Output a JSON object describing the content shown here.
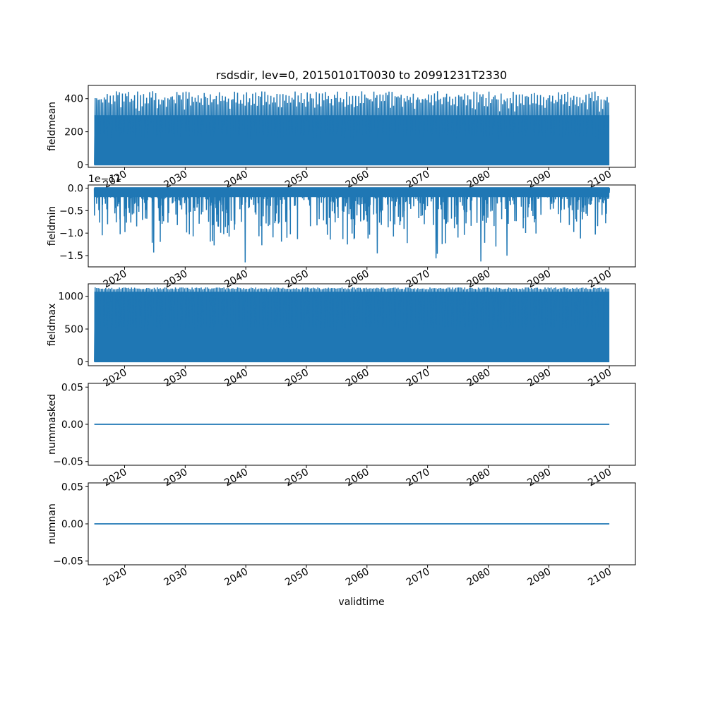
{
  "figure": {
    "title": "rsdsdir, lev=0, 20150101T0030 to 20991231T2330",
    "xlabel": "validtime"
  },
  "colors": {
    "series": "#1f77b4",
    "axes": "#000000",
    "background": "#ffffff"
  },
  "chart_data": [
    {
      "type": "line",
      "name": "fieldmean",
      "ylabel": "fieldmean",
      "x_range": [
        "2015-01-01",
        "2099-12-31"
      ],
      "xlim": [
        2014.0,
        2104.3
      ],
      "xticks": [
        2020,
        2030,
        2040,
        2050,
        2060,
        2070,
        2080,
        2090,
        2100
      ],
      "xtick_labels": [
        "2020",
        "2030",
        "2040",
        "2050",
        "2060",
        "2070",
        "2080",
        "2090",
        "2100"
      ],
      "ylim": [
        -15,
        480
      ],
      "yticks": [
        0,
        200,
        400
      ],
      "ytick_labels": [
        "0",
        "200",
        "400"
      ],
      "offset_text": "",
      "base_value": 0,
      "envelope": "dense diurnal oscillation between 0 and a seasonal daily peak",
      "seasonal_peak_range": [
        300,
        460
      ]
    },
    {
      "type": "line",
      "name": "fieldmin",
      "ylabel": "fieldmin",
      "x_range": [
        "2015-01-01",
        "2099-12-31"
      ],
      "xlim": [
        2014.0,
        2104.3
      ],
      "xticks": [
        2020,
        2030,
        2040,
        2050,
        2060,
        2070,
        2080,
        2090,
        2100
      ],
      "xtick_labels": [
        "2020",
        "2030",
        "2040",
        "2050",
        "2060",
        "2070",
        "2080",
        "2090",
        "2100"
      ],
      "ylim": [
        -1.75,
        0.07
      ],
      "yticks": [
        0.0,
        -0.5,
        -1.0,
        -1.5
      ],
      "ytick_labels": [
        "0.0",
        "−0.5",
        "−1.0",
        "−1.5"
      ],
      "offset_text": "1e−11",
      "base_value": 0,
      "notable_minima": [
        {
          "x": 2039.9,
          "y": -1.65
        },
        {
          "x": 2078.8,
          "y": -1.63
        },
        {
          "x": 2071.4,
          "y": -1.56
        },
        {
          "x": 2083.1,
          "y": -1.5
        },
        {
          "x": 2024.8,
          "y": -1.43
        },
        {
          "x": 2061.7,
          "y": -1.45
        },
        {
          "x": 2071.6,
          "y": -1.46
        }
      ]
    },
    {
      "type": "line",
      "name": "fieldmax",
      "ylabel": "fieldmax",
      "x_range": [
        "2015-01-01",
        "2099-12-31"
      ],
      "xlim": [
        2014.0,
        2104.3
      ],
      "xticks": [
        2020,
        2030,
        2040,
        2050,
        2060,
        2070,
        2080,
        2090,
        2100
      ],
      "xtick_labels": [
        "2020",
        "2030",
        "2040",
        "2050",
        "2060",
        "2070",
        "2080",
        "2090",
        "2100"
      ],
      "ylim": [
        -60,
        1190
      ],
      "yticks": [
        0,
        500,
        1000
      ],
      "ytick_labels": [
        "0",
        "500",
        "1000"
      ],
      "offset_text": "",
      "base_value": 0,
      "seasonal_peak_range": [
        1080,
        1140
      ]
    },
    {
      "type": "line",
      "name": "nummasked",
      "ylabel": "nummasked",
      "x_range": [
        "2015-01-01",
        "2099-12-31"
      ],
      "xlim": [
        2014.0,
        2104.3
      ],
      "xticks": [
        2020,
        2030,
        2040,
        2050,
        2060,
        2070,
        2080,
        2090,
        2100
      ],
      "xtick_labels": [
        "2020",
        "2030",
        "2040",
        "2050",
        "2060",
        "2070",
        "2080",
        "2090",
        "2100"
      ],
      "ylim": [
        -0.055,
        0.055
      ],
      "yticks": [
        0.05,
        0.0,
        -0.05
      ],
      "ytick_labels": [
        "0.05",
        "0.00",
        "−0.05"
      ],
      "offset_text": "",
      "constant_value": 0.0
    },
    {
      "type": "line",
      "name": "numnan",
      "ylabel": "numnan",
      "x_range": [
        "2015-01-01",
        "2099-12-31"
      ],
      "xlim": [
        2014.0,
        2104.3
      ],
      "xticks": [
        2020,
        2030,
        2040,
        2050,
        2060,
        2070,
        2080,
        2090,
        2100
      ],
      "xtick_labels": [
        "2020",
        "2030",
        "2040",
        "2050",
        "2060",
        "2070",
        "2080",
        "2090",
        "2100"
      ],
      "ylim": [
        -0.055,
        0.055
      ],
      "yticks": [
        0.05,
        0.0,
        -0.05
      ],
      "ytick_labels": [
        "0.05",
        "0.00",
        "−0.05"
      ],
      "offset_text": "",
      "constant_value": 0.0
    }
  ]
}
